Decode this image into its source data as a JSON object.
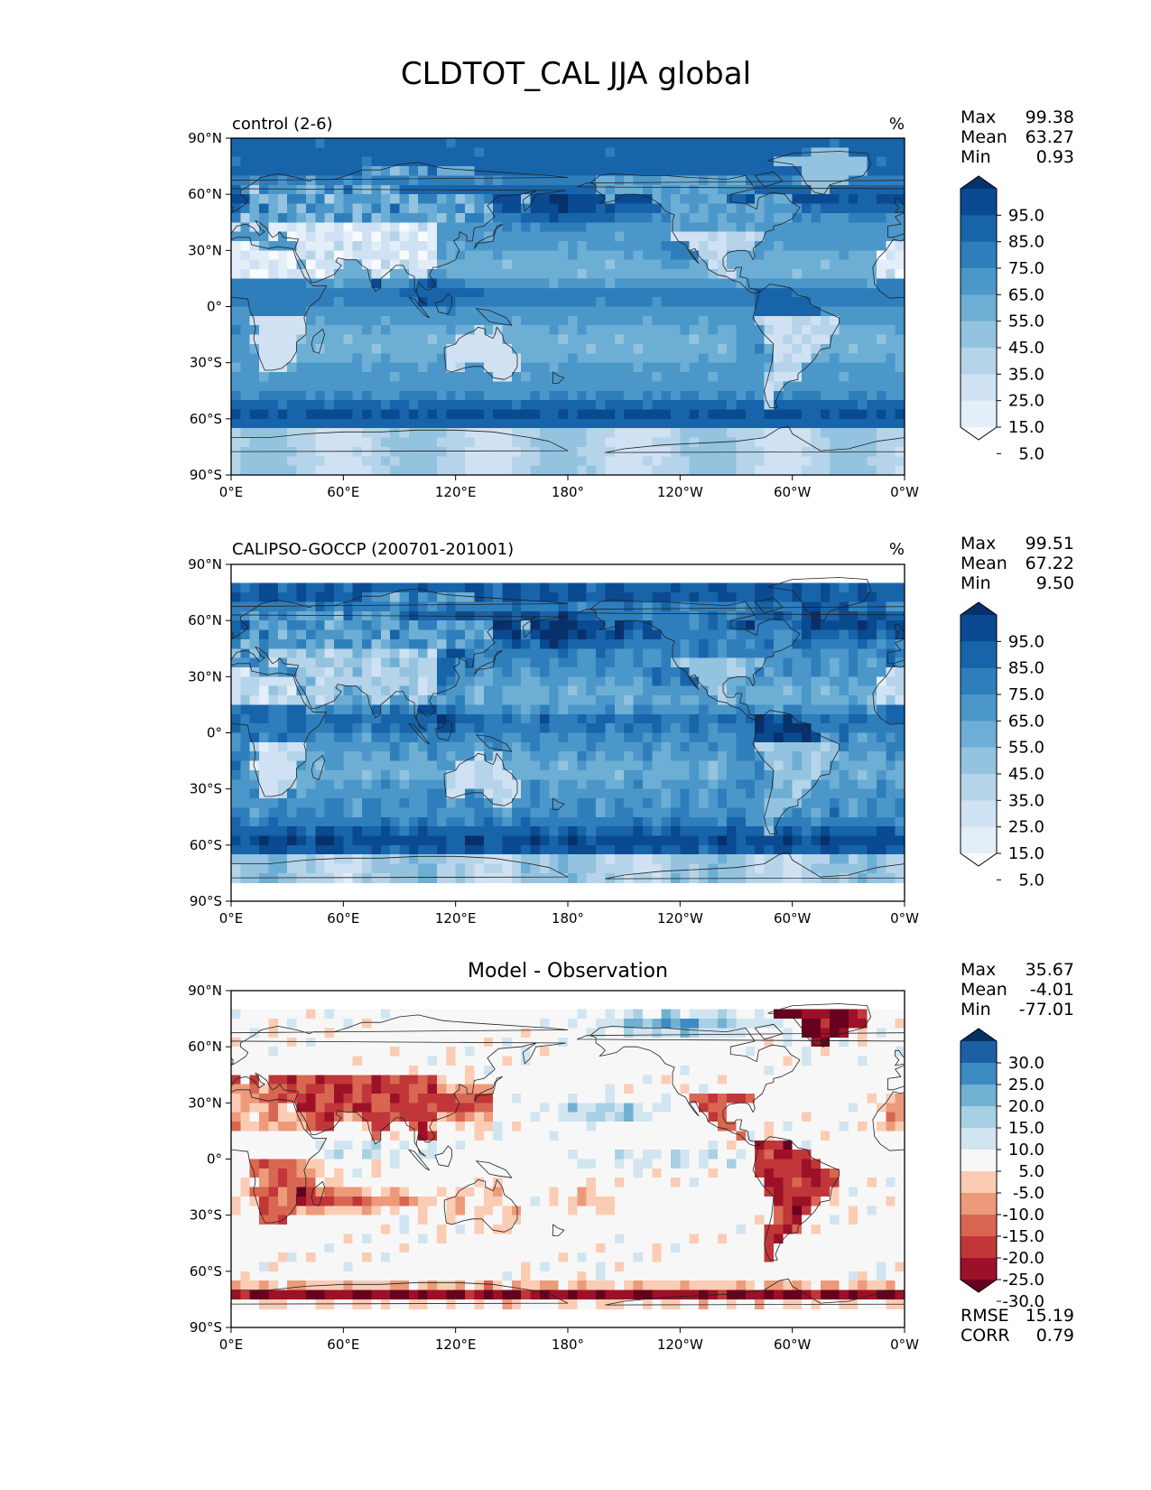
{
  "title": "CLDTOT_CAL JJA global",
  "lat_ticks": [
    "90°N",
    "60°N",
    "30°N",
    "0°",
    "30°S",
    "60°S",
    "90°S"
  ],
  "lon_ticks": [
    "0°E",
    "60°E",
    "120°E",
    "180°",
    "120°W",
    "60°W",
    "0°W"
  ],
  "stat_labels": {
    "max": "Max",
    "mean": "Mean",
    "min": "Min",
    "rmse": "RMSE",
    "corr": "CORR"
  },
  "panels": [
    {
      "id": "control",
      "left_title": "control (2-6)",
      "center_title": "",
      "units": "%",
      "stats": {
        "max": "99.38",
        "mean": "63.27",
        "min": "0.93"
      },
      "colorbar": {
        "ticks": [
          "95.0",
          "85.0",
          "75.0",
          "65.0",
          "55.0",
          "45.0",
          "35.0",
          "25.0",
          "15.0",
          "5.0"
        ]
      }
    },
    {
      "id": "obs",
      "left_title": "CALIPSO-GOCCP (200701-201001)",
      "center_title": "",
      "units": "%",
      "stats": {
        "max": "99.51",
        "mean": "67.22",
        "min": "9.50"
      },
      "colorbar": {
        "ticks": [
          "95.0",
          "85.0",
          "75.0",
          "65.0",
          "55.0",
          "45.0",
          "35.0",
          "25.0",
          "15.0",
          "5.0"
        ]
      }
    },
    {
      "id": "diff",
      "left_title": "",
      "center_title": "Model - Observation",
      "units": "",
      "stats": {
        "max": "35.67",
        "mean": "-4.01",
        "min": "-77.01"
      },
      "extra_stats": {
        "rmse": "15.19",
        "corr": "0.79"
      },
      "colorbar": {
        "ticks": [
          "30.0",
          "25.0",
          "20.0",
          "15.0",
          "10.0",
          "5.0",
          "-5.0",
          "-10.0",
          "-15.0",
          "-20.0",
          "-25.0",
          "-30.0"
        ]
      }
    }
  ],
  "palettes": {
    "blues": [
      "#f7fbff",
      "#e3eef9",
      "#cfe1f2",
      "#b5d4e9",
      "#93c3df",
      "#6daed5",
      "#4b97c9",
      "#2f7ebc",
      "#1864aa",
      "#0a4a90",
      "#08306b"
    ],
    "diff": [
      "#67001f",
      "#9c1127",
      "#c13639",
      "#d96651",
      "#ed9a7a",
      "#fbccb4",
      "#f7f7f7",
      "#d1e5f0",
      "#a7d0e4",
      "#70b0d3",
      "#3c8bc3",
      "#1d5fa3",
      "#053061"
    ]
  }
}
